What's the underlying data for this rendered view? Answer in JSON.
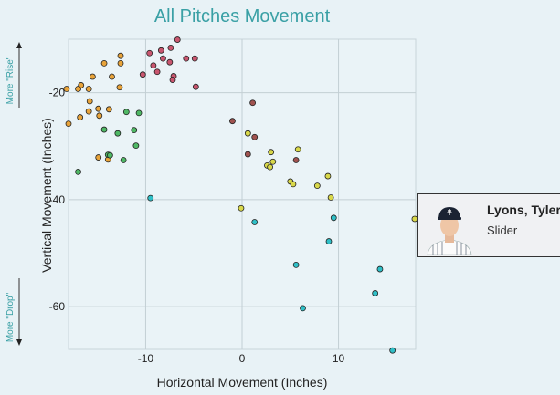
{
  "chart_data": {
    "type": "scatter",
    "title": "All Pitches Movement",
    "xlabel": "Horizontal Movement (Inches)",
    "ylabel": "Vertical Movement (Inches)",
    "xlim": [
      -18,
      18
    ],
    "ylim": [
      -68,
      -10
    ],
    "x_ticks": [
      -10,
      0,
      10
    ],
    "y_ticks": [
      -20,
      -40,
      -60
    ],
    "grid": true,
    "rise_label": "More \"Rise\"",
    "drop_label": "More \"Drop\"",
    "series": [
      {
        "color": "#c9566f",
        "points": [
          [
            -6.7,
            -10.1
          ],
          [
            -7.4,
            -11.6
          ],
          [
            -8.4,
            -12.1
          ],
          [
            -9.6,
            -12.6
          ],
          [
            -8.2,
            -13.6
          ],
          [
            -5.8,
            -13.6
          ],
          [
            -4.9,
            -13.6
          ],
          [
            -7.5,
            -14.3
          ],
          [
            -9.2,
            -14.9
          ],
          [
            -8.8,
            -16.1
          ],
          [
            -10.3,
            -16.6
          ],
          [
            -7.1,
            -16.9
          ],
          [
            -7.2,
            -17.6
          ],
          [
            -4.8,
            -18.9
          ]
        ]
      },
      {
        "color": "#e8a33a",
        "points": [
          [
            -12.6,
            -13.1
          ],
          [
            -12.6,
            -14.5
          ],
          [
            -14.3,
            -14.5
          ],
          [
            -13.5,
            -17.0
          ],
          [
            -15.5,
            -17.0
          ],
          [
            -16.7,
            -18.6
          ],
          [
            -17.0,
            -19.3
          ],
          [
            -18.2,
            -19.3
          ],
          [
            -15.9,
            -19.3
          ],
          [
            -12.7,
            -19.0
          ],
          [
            -15.8,
            -21.6
          ],
          [
            -16.8,
            -24.6
          ],
          [
            -15.9,
            -23.5
          ],
          [
            -14.9,
            -23.0
          ],
          [
            -14.8,
            -24.3
          ],
          [
            -13.8,
            -23.1
          ],
          [
            -18.0,
            -25.8
          ],
          [
            -14.9,
            -32.1
          ],
          [
            -13.9,
            -32.5
          ]
        ]
      },
      {
        "color": "#4fb865",
        "points": [
          [
            -12.0,
            -23.6
          ],
          [
            -10.7,
            -23.8
          ],
          [
            -14.3,
            -26.9
          ],
          [
            -11.2,
            -27.0
          ],
          [
            -12.9,
            -27.6
          ],
          [
            -11.0,
            -29.9
          ],
          [
            -13.9,
            -31.6
          ],
          [
            -13.7,
            -31.7
          ],
          [
            -12.3,
            -32.6
          ],
          [
            -17.0,
            -34.8
          ]
        ]
      },
      {
        "color": "#a0524f",
        "points": [
          [
            1.1,
            -21.9
          ],
          [
            -1.0,
            -25.3
          ],
          [
            1.3,
            -28.3
          ],
          [
            0.6,
            -31.5
          ],
          [
            5.6,
            -32.6
          ]
        ]
      },
      {
        "color": "#d9d84a",
        "points": [
          [
            0.6,
            -27.6
          ],
          [
            5.8,
            -30.6
          ],
          [
            3.0,
            -31.1
          ],
          [
            3.2,
            -32.9
          ],
          [
            2.6,
            -33.6
          ],
          [
            2.9,
            -33.9
          ],
          [
            8.9,
            -35.6
          ],
          [
            5.0,
            -36.6
          ],
          [
            5.3,
            -37.1
          ],
          [
            7.8,
            -37.4
          ],
          [
            9.2,
            -39.6
          ],
          [
            -0.1,
            -41.6
          ],
          [
            17.9,
            -43.6
          ]
        ]
      },
      {
        "color": "#2fbfc7",
        "points": [
          [
            -9.5,
            -39.7
          ],
          [
            1.3,
            -44.2
          ],
          [
            9.5,
            -43.4
          ],
          [
            9.0,
            -47.8
          ],
          [
            5.6,
            -52.2
          ],
          [
            14.3,
            -53.0
          ],
          [
            13.8,
            -57.5
          ],
          [
            6.3,
            -60.3
          ],
          [
            15.6,
            -68.2
          ]
        ]
      }
    ]
  },
  "card": {
    "name": "Lyons, Tyler",
    "pitch": "Slider",
    "avatar_icon": "player-headshot-icon"
  }
}
